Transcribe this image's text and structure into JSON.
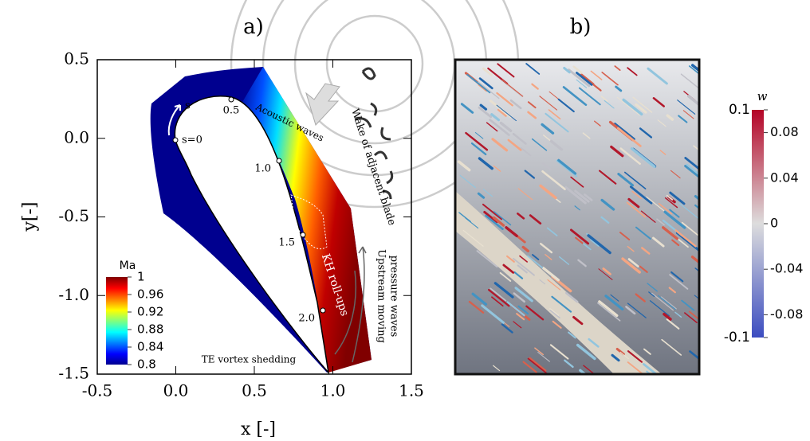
{
  "chart_data": [
    {
      "type": "contour",
      "title": "a)",
      "x_label": "x [-]",
      "y_label": "y[-]",
      "xlim": [
        -0.5,
        1.5
      ],
      "ylim": [
        -1.5,
        0.5
      ],
      "xticks": [
        -0.5,
        {
          "value": 0,
          "label": "0.0"
        },
        0.5,
        {
          "value": 1,
          "label": "1.0"
        },
        1.5
      ],
      "yticks": [
        0.5,
        {
          "value": 0,
          "label": "0.0"
        },
        -0.5,
        {
          "value": -1,
          "label": "-1.0"
        },
        -1.5
      ],
      "colorbar": {
        "label": "Ma",
        "colormap": "jet",
        "lim": [
          0.8,
          1
        ],
        "ticks": [
          1,
          0.96,
          0.92,
          0.88,
          0.84,
          0.8
        ]
      },
      "s_markers": [
        "s",
        "s=0",
        "0.5",
        "1.0",
        "1.5",
        "2.0"
      ],
      "annotations": [
        "Acoustic waves",
        "Wake of adjacent blade",
        "Upstream moving",
        "pressure waves",
        "KH roll-ups",
        "TE vortex shedding"
      ]
    },
    {
      "type": "image",
      "title": "b)",
      "colorbar": {
        "label": "w",
        "colormap": "coolwarm",
        "lim": [
          -0.1,
          0.1
        ],
        "ticks": [
          0.1,
          0.08,
          0.04,
          0,
          -0.04,
          -0.08,
          -0.1
        ]
      }
    }
  ]
}
